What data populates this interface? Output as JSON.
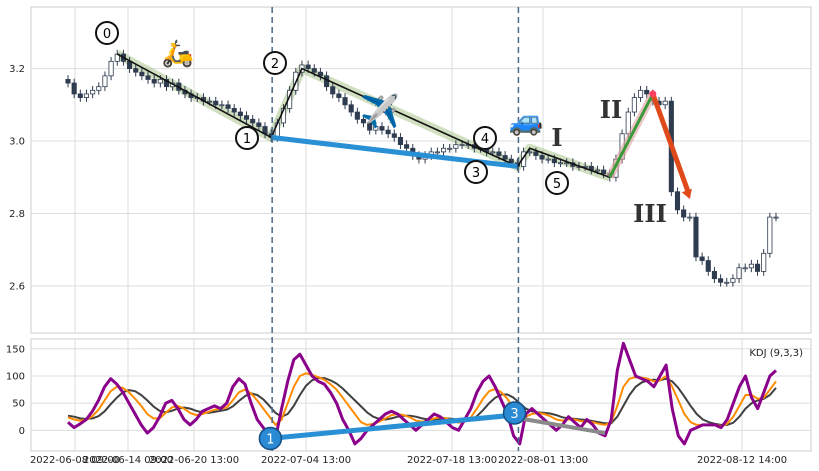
{
  "chart_data": [
    {
      "type": "candlestick",
      "panel": "price",
      "x_tick_labels": [
        "2022-06-08 09:00",
        "2022-06-14 09:00",
        "2022-06-20 13:00",
        "2022-07-04 13:00",
        "2022-07-18 13:00",
        "2022-08-01 13:00",
        "2022-08-12 14:00"
      ],
      "y_ticks": [
        2.6,
        2.8,
        3.0,
        3.2
      ],
      "ylim": [
        2.47,
        3.37
      ],
      "grid": true,
      "series": [
        {
          "name": "",
          "close": [
            3.16,
            3.13,
            3.12,
            3.13,
            3.14,
            3.15,
            3.18,
            3.22,
            3.24,
            3.22,
            3.2,
            3.19,
            3.18,
            3.17,
            3.16,
            3.17,
            3.15,
            3.16,
            3.14,
            3.13,
            3.12,
            3.12,
            3.11,
            3.11,
            3.1,
            3.1,
            3.09,
            3.08,
            3.07,
            3.06,
            3.05,
            3.04,
            3.02,
            3.01,
            3.05,
            3.09,
            3.14,
            3.19,
            3.21,
            3.2,
            3.19,
            3.18,
            3.15,
            3.13,
            3.12,
            3.1,
            3.08,
            3.06,
            3.05,
            3.03,
            3.04,
            3.03,
            3.02,
            3.01,
            2.99,
            2.98,
            2.96,
            2.95,
            2.96,
            2.97,
            2.97,
            2.98,
            2.98,
            2.99,
            2.99,
            2.99,
            2.98,
            2.98,
            2.97,
            2.97,
            2.96,
            2.95,
            2.94,
            2.93,
            2.97,
            2.97,
            2.96,
            2.95,
            2.95,
            2.94,
            2.94,
            2.94,
            2.93,
            2.93,
            2.93,
            2.92,
            2.92,
            2.91,
            2.9,
            2.95,
            3.02,
            3.08,
            3.12,
            3.14,
            3.13,
            3.11,
            3.1,
            3.11,
            2.86,
            2.81,
            2.79,
            2.79,
            2.68,
            2.67,
            2.64,
            2.62,
            2.61,
            2.61,
            2.62,
            2.65,
            2.65,
            2.66,
            2.64,
            2.69,
            2.79,
            2.79
          ]
        }
      ],
      "pattern_points": [
        {
          "label": "0",
          "x_index": 8,
          "price": 3.24
        },
        {
          "label": "1",
          "x_index": 33,
          "price": 3.01
        },
        {
          "label": "2",
          "x_index": 38,
          "price": 3.2
        },
        {
          "label": "3",
          "x_index": 73,
          "price": 2.93
        },
        {
          "label": "4",
          "x_index": 75,
          "price": 2.98
        },
        {
          "label": "5",
          "x_index": 88,
          "price": 2.9
        }
      ],
      "divergence_line": {
        "from_point": "1",
        "to_point": "3"
      },
      "forecast": [
        {
          "label": "I",
          "from_x_index": 88,
          "to_x_index": 95,
          "price_from": 2.9,
          "price_to": 3.13
        },
        {
          "label": "II",
          "from_x_index": 95,
          "to_x_index": 101,
          "price_from": 3.13,
          "price_to": 2.84
        },
        {
          "label": "III",
          "x_index": 101,
          "price": 2.84
        }
      ],
      "annotations": [
        "🛵",
        "✈️",
        "🚙",
        "I",
        "II",
        "III"
      ],
      "vlines_at_x_index": [
        33,
        73
      ]
    },
    {
      "type": "line",
      "panel": "indicator",
      "legend": "KDJ (9,3,3)",
      "legend_placement": "top-right",
      "y_ticks": [
        0,
        50,
        100,
        150
      ],
      "ylim": [
        -38,
        168
      ],
      "grid": true,
      "series": [
        {
          "name": "J",
          "color": "#8b008b",
          "values": [
            15,
            5,
            12,
            20,
            35,
            55,
            80,
            95,
            85,
            70,
            50,
            30,
            10,
            -5,
            5,
            25,
            50,
            55,
            40,
            20,
            10,
            20,
            35,
            40,
            45,
            40,
            50,
            80,
            95,
            85,
            50,
            20,
            5,
            -10,
            -15,
            40,
            90,
            130,
            140,
            120,
            100,
            90,
            85,
            70,
            50,
            20,
            0,
            -25,
            -15,
            0,
            10,
            20,
            30,
            35,
            30,
            20,
            10,
            0,
            10,
            20,
            30,
            25,
            15,
            5,
            0,
            20,
            40,
            70,
            90,
            100,
            80,
            55,
            30,
            -10,
            -25,
            30,
            40,
            30,
            20,
            10,
            0,
            10,
            25,
            15,
            5,
            20,
            10,
            -5,
            -10,
            20,
            110,
            160,
            130,
            100,
            95,
            90,
            80,
            100,
            120,
            40,
            -10,
            -25,
            0,
            5,
            10,
            10,
            10,
            5,
            20,
            50,
            80,
            100,
            60,
            40,
            70,
            100,
            110
          ]
        },
        {
          "name": "K",
          "color": "#ff8c00",
          "values": [
            24,
            20,
            18,
            20,
            26,
            38,
            55,
            72,
            80,
            78,
            70,
            58,
            45,
            30,
            22,
            22,
            32,
            42,
            45,
            40,
            32,
            28,
            30,
            34,
            38,
            40,
            42,
            55,
            70,
            75,
            68,
            55,
            40,
            25,
            10,
            20,
            50,
            80,
            100,
            105,
            102,
            98,
            93,
            85,
            75,
            60,
            45,
            30,
            15,
            10,
            12,
            16,
            22,
            28,
            30,
            28,
            24,
            18,
            16,
            18,
            22,
            24,
            22,
            18,
            14,
            16,
            24,
            40,
            58,
            72,
            76,
            70,
            58,
            40,
            25,
            25,
            30,
            32,
            30,
            26,
            20,
            18,
            20,
            20,
            17,
            16,
            15,
            12,
            10,
            15,
            45,
            80,
            95,
            98,
            97,
            95,
            90,
            92,
            100,
            80,
            55,
            30,
            15,
            10,
            10,
            10,
            10,
            8,
            12,
            25,
            45,
            65,
            65,
            58,
            60,
            75,
            90
          ]
        },
        {
          "name": "D",
          "color": "#404040",
          "values": [
            27,
            25,
            22,
            21,
            22,
            26,
            35,
            48,
            60,
            70,
            74,
            72,
            65,
            55,
            44,
            36,
            33,
            36,
            40,
            42,
            40,
            36,
            33,
            32,
            34,
            36,
            38,
            44,
            54,
            63,
            68,
            65,
            57,
            45,
            32,
            25,
            30,
            45,
            65,
            82,
            92,
            96,
            96,
            92,
            86,
            77,
            66,
            55,
            44,
            33,
            25,
            21,
            20,
            22,
            25,
            27,
            27,
            25,
            22,
            20,
            20,
            21,
            22,
            21,
            19,
            17,
            19,
            26,
            37,
            50,
            60,
            66,
            66,
            60,
            50,
            40,
            35,
            33,
            32,
            31,
            28,
            24,
            22,
            21,
            20,
            19,
            17,
            15,
            13,
            13,
            25,
            45,
            65,
            80,
            88,
            92,
            93,
            92,
            95,
            90,
            78,
            62,
            45,
            30,
            20,
            15,
            12,
            10,
            10,
            14,
            25,
            40,
            50,
            55,
            58,
            65,
            78
          ]
        }
      ],
      "divergence_markers": [
        {
          "label": "1",
          "x_index": 33,
          "value": -15
        },
        {
          "label": "3",
          "x_index": 73,
          "value": 32
        }
      ],
      "trend_lines": [
        {
          "from_x_index": 33,
          "to_x_index": 73,
          "value_from": -15,
          "value_to": 28
        },
        {
          "from_x_index": 74,
          "to_x_index": 88,
          "value_from": 22,
          "value_to": -5
        }
      ]
    }
  ]
}
